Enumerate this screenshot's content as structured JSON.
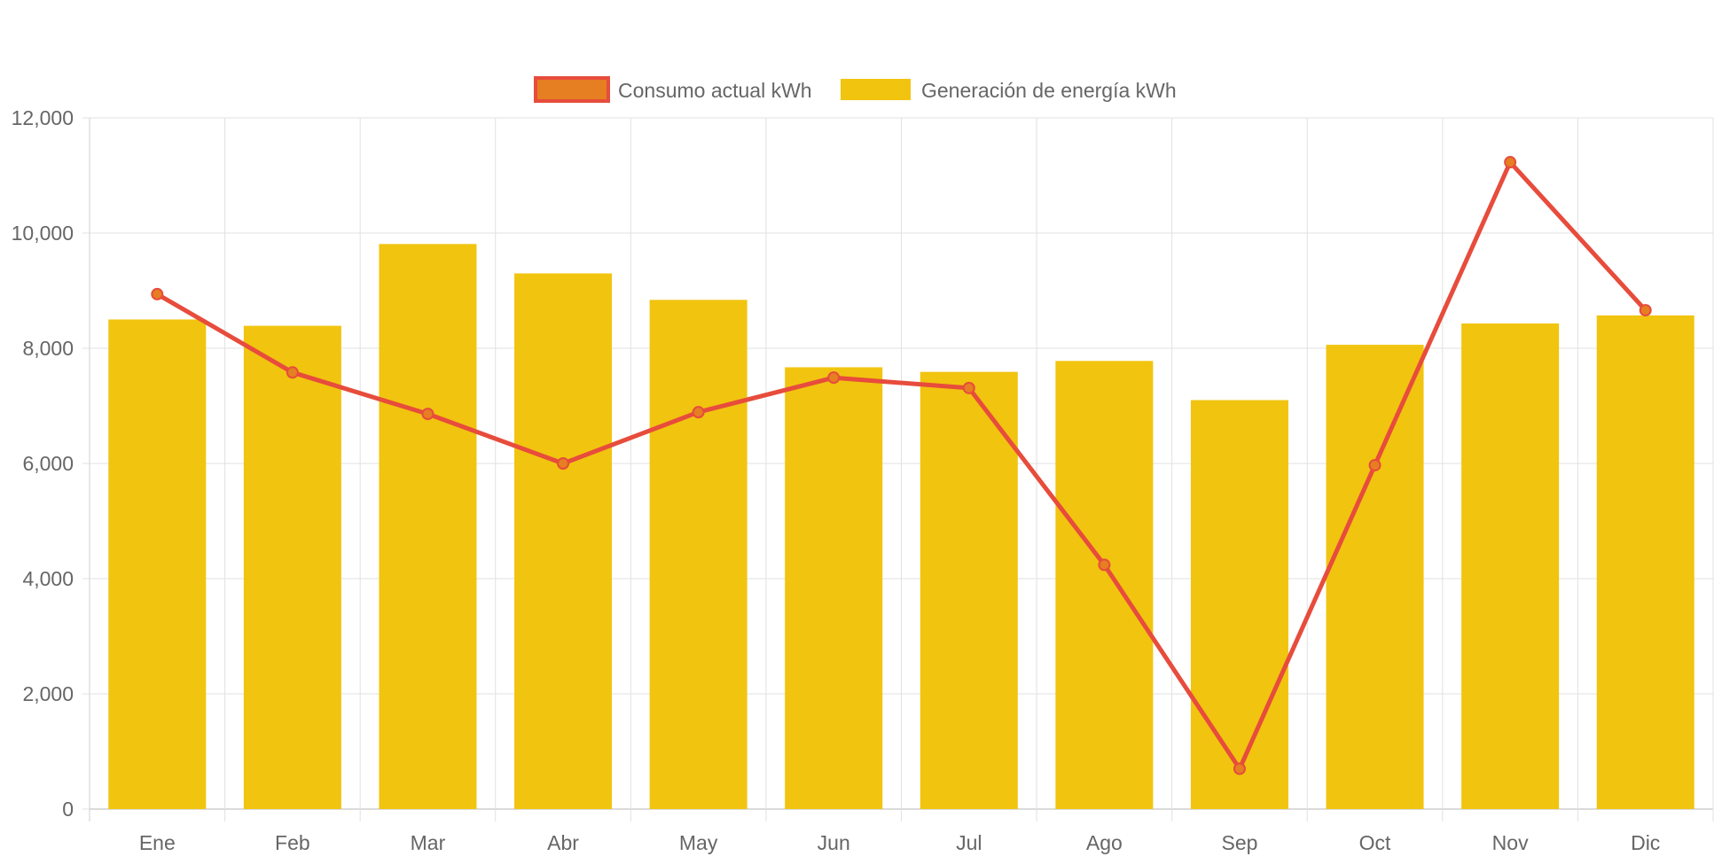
{
  "colors": {
    "bar": "#F1C40F",
    "line": "#E74C3C",
    "point_fill": "#E67E22",
    "legend_line_fill": "#E67E22",
    "grid": "#e1e1e1",
    "axis": "#cfcfcf",
    "text": "#666666"
  },
  "chart_data": {
    "type": "bar",
    "categories": [
      "Ene",
      "Feb",
      "Mar",
      "Abr",
      "May",
      "Jun",
      "Jul",
      "Ago",
      "Sep",
      "Oct",
      "Nov",
      "Dic"
    ],
    "series": [
      {
        "name": "Consumo actual kWh",
        "type": "line",
        "values": [
          8940,
          7580,
          6860,
          6000,
          6890,
          7490,
          7310,
          4240,
          700,
          5970,
          11230,
          8660
        ]
      },
      {
        "name": "Generación de energía kWh",
        "type": "bar",
        "values": [
          8500,
          8390,
          9810,
          9300,
          8840,
          7670,
          7590,
          7780,
          7100,
          8060,
          8430,
          8570
        ]
      }
    ],
    "yticks": [
      "0",
      "2,000",
      "4,000",
      "6,000",
      "8,000",
      "10,000",
      "12,000"
    ],
    "ylim": [
      0,
      12000
    ],
    "grid": true,
    "legend": "top-center"
  }
}
